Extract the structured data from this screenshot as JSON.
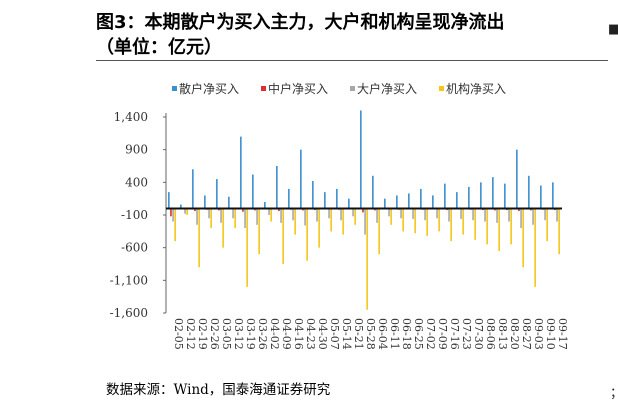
{
  "header": {
    "title_line1": "图3：本期散户为买入主力，大户和机构呈现净流出",
    "title_line2": "（单位：亿元）"
  },
  "footer": {
    "source": "数据来源：Wind，国泰海通证券研究"
  },
  "edge": {
    "top_right_glyph": "■",
    "bottom_right_glyph": "；"
  },
  "chart_data": {
    "type": "bar",
    "title": "",
    "xlabel": "",
    "ylabel": "",
    "ylim": [
      -1600,
      1600
    ],
    "ytick_values": [
      1400,
      900,
      400,
      -100,
      -600,
      -1100,
      -1600
    ],
    "ytick_labels": [
      "1,400",
      "900",
      "400",
      "-100",
      "-600",
      "-1,100",
      "-1,600"
    ],
    "x_tick_labels": [
      "02-05",
      "02-12",
      "02-19",
      "02-26",
      "03-05",
      "03-12",
      "03-19",
      "03-26",
      "04-02",
      "04-09",
      "04-16",
      "04-23",
      "04-30",
      "05-07",
      "05-14",
      "05-21",
      "05-28",
      "06-04",
      "06-11",
      "06-18",
      "06-25",
      "07-02",
      "07-09",
      "07-16",
      "07-23",
      "07-30",
      "08-06",
      "08-13",
      "08-20",
      "08-27",
      "09-03",
      "09-10",
      "09-17"
    ],
    "legend_position": "top",
    "grid": false,
    "series": [
      {
        "name": "散户净买入",
        "color": "#3a8fd0",
        "values": [
          250,
          60,
          600,
          200,
          450,
          180,
          1100,
          520,
          100,
          650,
          300,
          900,
          420,
          250,
          300,
          150,
          1500,
          500,
          150,
          200,
          230,
          300,
          200,
          380,
          250,
          330,
          400,
          480,
          380,
          900,
          500,
          350,
          400
        ]
      },
      {
        "name": "中户净买入",
        "color": "#e02d2d",
        "values": [
          -120,
          -10,
          -40,
          -20,
          -30,
          -15,
          -50,
          -30,
          -10,
          -40,
          -20,
          -30,
          -25,
          -15,
          -20,
          -10,
          -60,
          -30,
          -10,
          -20,
          -15,
          -20,
          -15,
          -25,
          -15,
          -20,
          -25,
          -30,
          -25,
          -40,
          -30,
          -20,
          -25
        ]
      },
      {
        "name": "大户净买入",
        "color": "#a8a8a8",
        "values": [
          -200,
          -80,
          -250,
          -150,
          -220,
          -150,
          -300,
          -250,
          -100,
          -220,
          -180,
          -260,
          -200,
          -150,
          -180,
          -120,
          -400,
          -220,
          -120,
          -150,
          -160,
          -180,
          -150,
          -200,
          -160,
          -180,
          -200,
          -220,
          -200,
          -300,
          -250,
          -180,
          -200
        ]
      },
      {
        "name": "机构净买入",
        "color": "#f5c518",
        "values": [
          -500,
          -100,
          -900,
          -300,
          -600,
          -300,
          -1200,
          -700,
          -200,
          -850,
          -400,
          -800,
          -600,
          -350,
          -400,
          -250,
          -1550,
          -700,
          -250,
          -350,
          -380,
          -420,
          -350,
          -500,
          -400,
          -480,
          -550,
          -650,
          -550,
          -900,
          -1200,
          -500,
          -700
        ]
      }
    ]
  }
}
